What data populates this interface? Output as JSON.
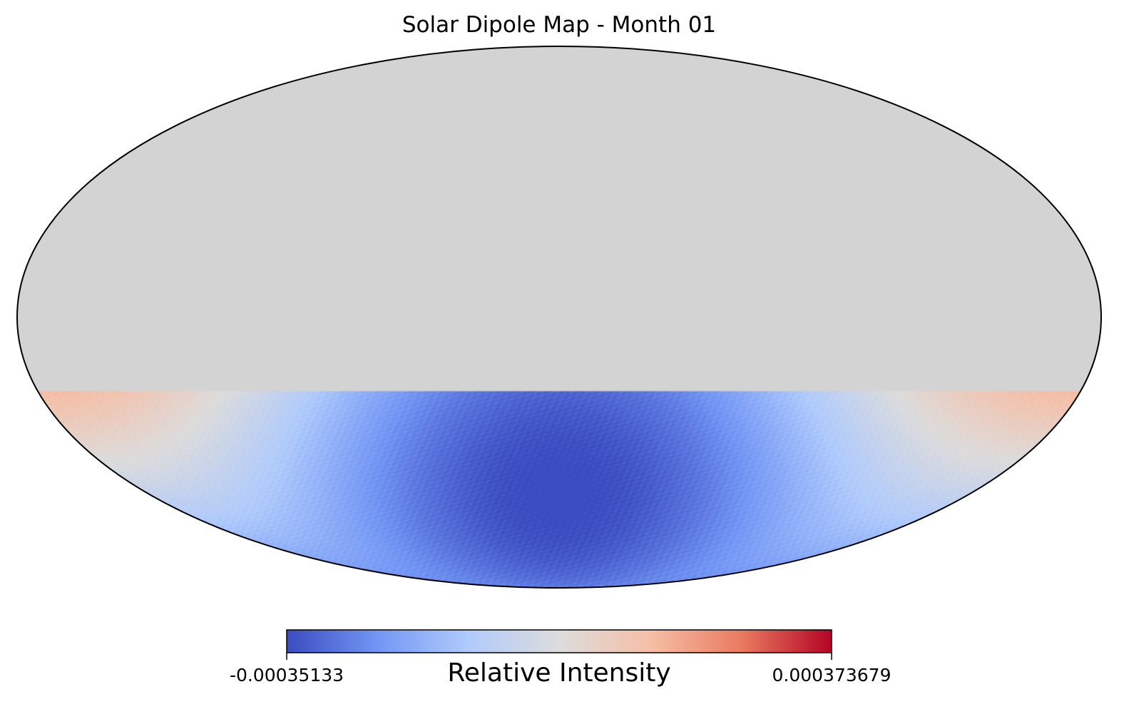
{
  "chart_data": {
    "type": "heatmap",
    "projection": "mollweide",
    "title": "Solar Dipole Map - Month 01",
    "colormap": "coolwarm",
    "colormap_stops": [
      "#3b4cc0",
      "#7396f5",
      "#b0cbfc",
      "#dddcdc",
      "#f6bfa6",
      "#ea7b60",
      "#b40426"
    ],
    "masked_color": "#d3d3d3",
    "masked_region": "north of about -20° latitude (no data)",
    "min": -0.00035133,
    "max": 0.000373679,
    "colorbar": {
      "label": "Relative Intensity",
      "min_label": "-0.00035133",
      "max_label": "0.000373679",
      "orientation": "horizontal",
      "placement": "bottom"
    },
    "dipole": {
      "minimum_direction": "lon ≈ 0°, lat ≈ -50°",
      "maximum_direction": "lon ≈ 115° W (right side), lat ≈ -25°"
    }
  }
}
